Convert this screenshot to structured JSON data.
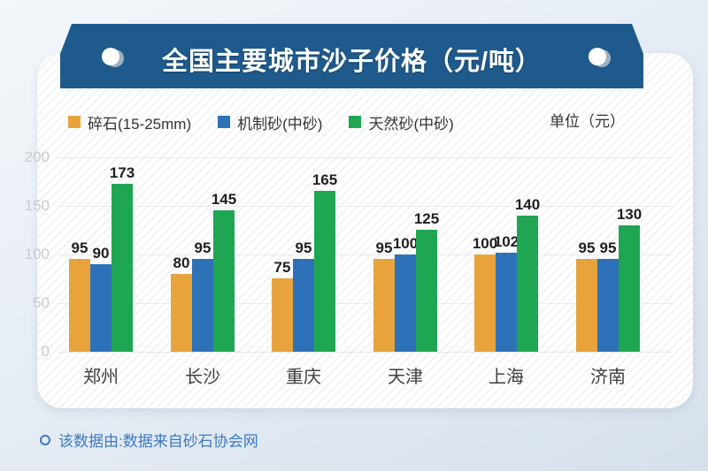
{
  "page": {
    "title": "全国主要城市沙子价格（元/吨）",
    "unit_label": "单位（元）",
    "source_note": "该数据由:数据来自砂石协会网"
  },
  "colors": {
    "ribbon": "#1e5a8c",
    "source_text": "#3b7ac1"
  },
  "chart_data": {
    "type": "bar",
    "title": "全国主要城市沙子价格（元/吨）",
    "unit": "元",
    "categories": [
      "郑州",
      "长沙",
      "重庆",
      "天津",
      "上海",
      "济南"
    ],
    "series": [
      {
        "name": "碎石(15-25mm)",
        "color": "#E8A33D",
        "values": [
          95,
          80,
          75,
          95,
          100,
          95
        ]
      },
      {
        "name": "机制砂(中砂)",
        "color": "#2D72B8",
        "values": [
          90,
          95,
          95,
          100,
          102,
          95
        ]
      },
      {
        "name": "天然砂(中砂)",
        "color": "#1FA653",
        "values": [
          173,
          145,
          165,
          125,
          140,
          130
        ]
      }
    ],
    "yticks": [
      0,
      50,
      100,
      150,
      200
    ],
    "ylim": [
      0,
      200
    ],
    "grid": true,
    "legend_position": "top"
  }
}
